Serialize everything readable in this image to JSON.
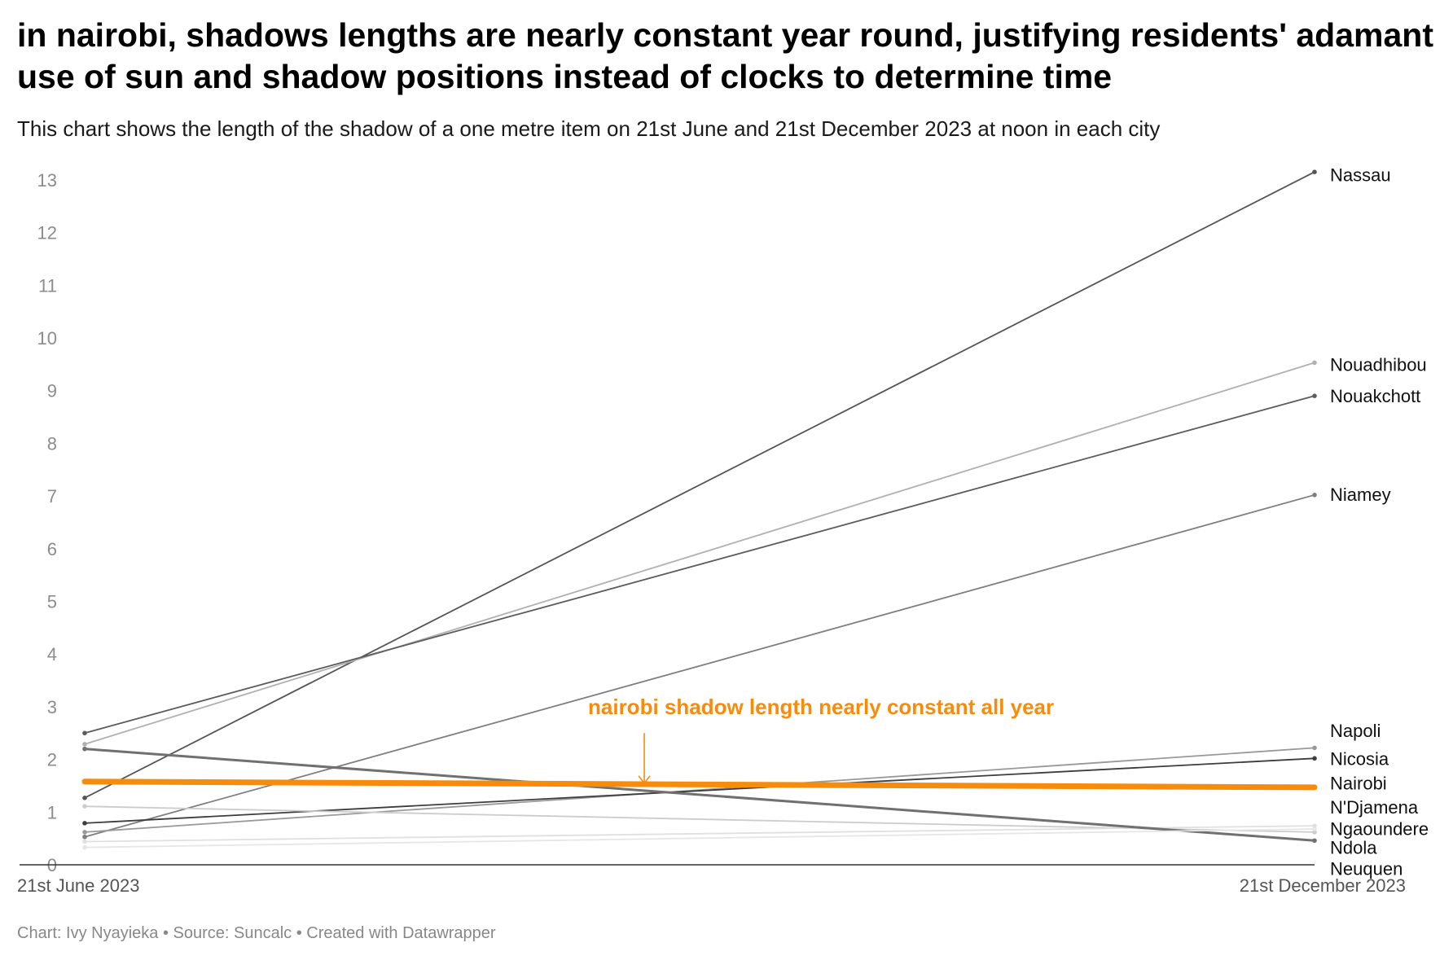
{
  "title": "in nairobi, shadows lengths are nearly constant year round, justifying residents' adamant use of sun and shadow positions instead of clocks to determine time",
  "subtitle": "This chart shows the length of the shadow of a one metre item on 21st June and 21st December 2023 at noon in each city",
  "footer": "Chart: Ivy Nyayieka • Source: Suncalc • Created with Datawrapper",
  "chart_data": {
    "type": "line",
    "x": [
      "21st June 2023",
      "21st December 2023"
    ],
    "ylim": [
      0,
      13.2
    ],
    "yticks": [
      0,
      1,
      2,
      3,
      4,
      5,
      6,
      7,
      8,
      9,
      10,
      11,
      12,
      13
    ],
    "grid": false,
    "series": [
      {
        "name": "Nassau",
        "values": [
          1.27,
          13.15
        ],
        "color": "#555555",
        "width": 1.8,
        "label_y": 13.1
      },
      {
        "name": "Nouadhibou",
        "values": [
          2.29,
          9.53
        ],
        "color": "#b0b0b0",
        "width": 1.8,
        "label_y": 9.5
      },
      {
        "name": "Nouakchott",
        "values": [
          2.5,
          8.9
        ],
        "color": "#5c5c5c",
        "width": 1.8,
        "label_y": 8.9
      },
      {
        "name": "Niamey",
        "values": [
          0.53,
          7.02
        ],
        "color": "#7f7f7f",
        "width": 1.8,
        "label_y": 7.03
      },
      {
        "name": "Napoli",
        "values": [
          0.62,
          2.22
        ],
        "color": "#999999",
        "width": 1.8,
        "label_y": 2.55
      },
      {
        "name": "Nicosia",
        "values": [
          0.79,
          2.02
        ],
        "color": "#3d3d3d",
        "width": 1.8,
        "label_y": 2.02
      },
      {
        "name": "Nairobi",
        "values": [
          1.58,
          1.47
        ],
        "color": "#f78b0c",
        "width": 7,
        "highlight": true,
        "label_y": 1.55
      },
      {
        "name": "N'Djamena",
        "values": [
          1.11,
          0.62
        ],
        "color": "#cccccc",
        "width": 1.8,
        "label_y": 1.1
      },
      {
        "name": "Ngaoundere",
        "values": [
          0.44,
          0.74
        ],
        "color": "#e0e0e0",
        "width": 1.8,
        "label_y": 0.69
      },
      {
        "name": "Ndola",
        "values": [
          2.2,
          0.46
        ],
        "color": "#707070",
        "width": 3,
        "label_y": 0.33
      },
      {
        "name": "Neuquen",
        "values": [
          0.33,
          0.68
        ],
        "color": "#e6e6e6",
        "width": 1.8,
        "label_y": -0.07
      }
    ],
    "annotation": {
      "text": "nairobi shadow length nearly constant all year",
      "color": "#f78b0c",
      "x_fraction": 0.455,
      "y": 3.0,
      "arrow_from_y": 2.5,
      "arrow_to_y": 1.55
    }
  }
}
